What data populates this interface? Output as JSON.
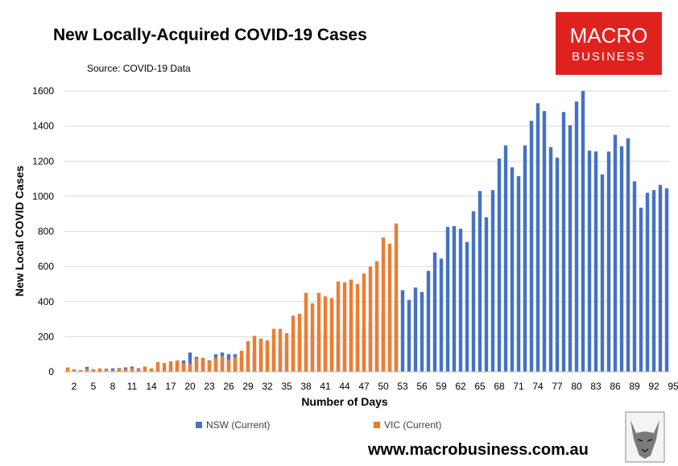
{
  "title": "New Locally-Acquired COVID-19 Cases",
  "subtitle": "Source: COVID-19 Data",
  "logo": {
    "line1": "MACRO",
    "line2": "BUSINESS",
    "color": "#e0221e"
  },
  "website": "www.macrobusiness.com.au",
  "colors": {
    "nsw": "#4472c4",
    "vic": "#ed7d31",
    "grid": "#d9d9d9"
  },
  "chart_data": {
    "type": "bar",
    "title": "New Locally-Acquired COVID-19 Cases",
    "xlabel": "Number of Days",
    "ylabel": "New Local COVID Cases",
    "ylim": [
      0,
      1600
    ],
    "yticks": [
      0,
      200,
      400,
      600,
      800,
      1000,
      1200,
      1400,
      1600
    ],
    "x": [
      1,
      2,
      3,
      4,
      5,
      6,
      7,
      8,
      9,
      10,
      11,
      12,
      13,
      14,
      15,
      16,
      17,
      18,
      19,
      20,
      21,
      22,
      23,
      24,
      25,
      26,
      27,
      28,
      29,
      30,
      31,
      32,
      33,
      34,
      35,
      36,
      37,
      38,
      39,
      40,
      41,
      42,
      43,
      44,
      45,
      46,
      47,
      48,
      49,
      50,
      51,
      52,
      53,
      54,
      55,
      56,
      57,
      58,
      59,
      60,
      61,
      62,
      63,
      64,
      65,
      66,
      67,
      68,
      69,
      70,
      71,
      72,
      73,
      74,
      75,
      76,
      77,
      78,
      79,
      80,
      81,
      82,
      83,
      84,
      85,
      86,
      87,
      88,
      89,
      90,
      91,
      92,
      93,
      94
    ],
    "xtick_labels": [
      "2",
      "5",
      "8",
      "11",
      "14",
      "17",
      "20",
      "23",
      "26",
      "29",
      "32",
      "35",
      "38",
      "41",
      "44",
      "47",
      "50",
      "53",
      "56",
      "59",
      "62",
      "65",
      "68",
      "71",
      "74",
      "77",
      "80",
      "83",
      "86",
      "89",
      "92",
      "95"
    ],
    "legend": "bottom",
    "series": [
      {
        "name": "NSW (Current)",
        "values": [
          10,
          5,
          10,
          28,
          15,
          12,
          18,
          20,
          22,
          25,
          30,
          20,
          25,
          18,
          15,
          25,
          40,
          45,
          65,
          110,
          85,
          80,
          65,
          100,
          110,
          100,
          100,
          80,
          110,
          115,
          135,
          165,
          140,
          145,
          175,
          175,
          240,
          165,
          210,
          235,
          210,
          200,
          225,
          265,
          290,
          300,
          250,
          280,
          355,
          345,
          345,
          390,
          465,
          410,
          480,
          455,
          575,
          680,
          645,
          825,
          830,
          815,
          740,
          915,
          1030,
          880,
          1035,
          1215,
          1290,
          1165,
          1115,
          1290,
          1430,
          1530,
          1485,
          1280,
          1220,
          1480,
          1405,
          1540,
          1600,
          1260,
          1255,
          1125,
          1255,
          1350,
          1285,
          1330,
          1085,
          935,
          1020,
          1035,
          1065,
          1045
        ]
      },
      {
        "name": "VIC (Current)",
        "values": [
          25,
          15,
          8,
          18,
          12,
          20,
          15,
          10,
          20,
          18,
          22,
          15,
          30,
          20,
          55,
          50,
          60,
          65,
          50,
          45,
          75,
          80,
          60,
          80,
          90,
          70,
          85,
          120,
          175,
          205,
          190,
          180,
          245,
          245,
          220,
          320,
          330,
          450,
          390,
          450,
          430,
          420,
          515,
          510,
          525,
          500,
          560,
          600,
          630,
          765,
          730,
          845,
          0,
          0,
          0,
          0,
          0,
          0,
          0,
          0,
          0,
          0,
          0,
          0,
          0,
          0,
          0,
          0,
          0,
          0,
          0,
          0,
          0,
          0,
          0,
          0,
          0,
          0,
          0,
          0,
          0,
          0,
          0,
          0,
          0,
          0,
          0,
          0,
          0,
          0,
          0,
          0,
          0,
          0
        ]
      }
    ]
  }
}
